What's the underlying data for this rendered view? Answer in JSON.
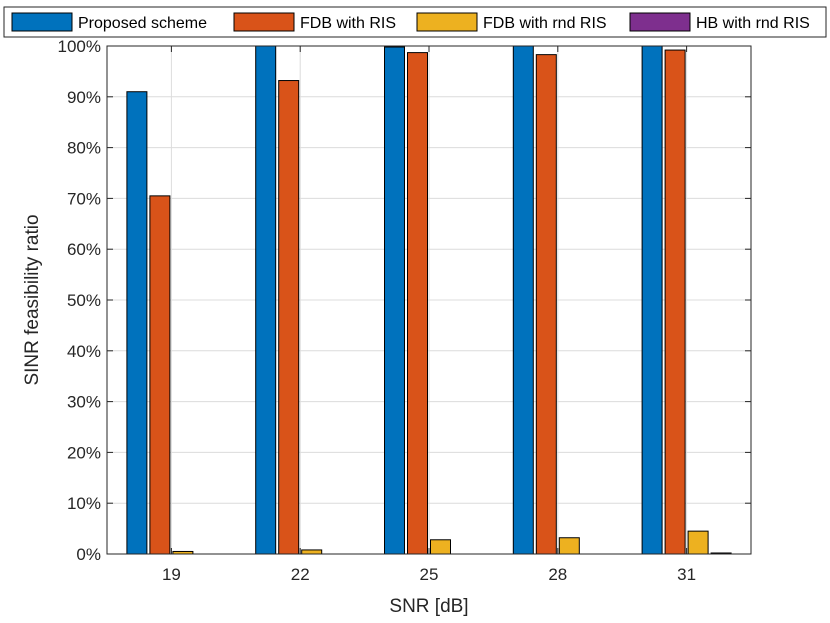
{
  "chart_data": {
    "type": "bar",
    "xlabel": "SNR [dB]",
    "ylabel": "SINR feasibility ratio",
    "categories": [
      "19",
      "22",
      "25",
      "28",
      "31"
    ],
    "ylim": [
      0,
      100
    ],
    "yticks": [
      0,
      10,
      20,
      30,
      40,
      50,
      60,
      70,
      80,
      90,
      100
    ],
    "ytick_labels": [
      "0%",
      "10%",
      "20%",
      "30%",
      "40%",
      "50%",
      "60%",
      "70%",
      "80%",
      "90%",
      "100%"
    ],
    "grid": true,
    "legend_position": "top",
    "series": [
      {
        "name": "Proposed scheme",
        "color": "#0072BD",
        "values": [
          91.0,
          100.0,
          99.8,
          100.0,
          100.0
        ]
      },
      {
        "name": "FDB with RIS",
        "color": "#D95319",
        "values": [
          70.5,
          93.2,
          98.7,
          98.3,
          99.2
        ]
      },
      {
        "name": "FDB with rnd RIS",
        "color": "#EDB120",
        "values": [
          0.5,
          0.8,
          2.8,
          3.2,
          4.5
        ]
      },
      {
        "name": "HB with rnd RIS",
        "color": "#7E2F8E",
        "values": [
          0.0,
          0.0,
          0.0,
          0.0,
          0.2
        ]
      }
    ]
  }
}
